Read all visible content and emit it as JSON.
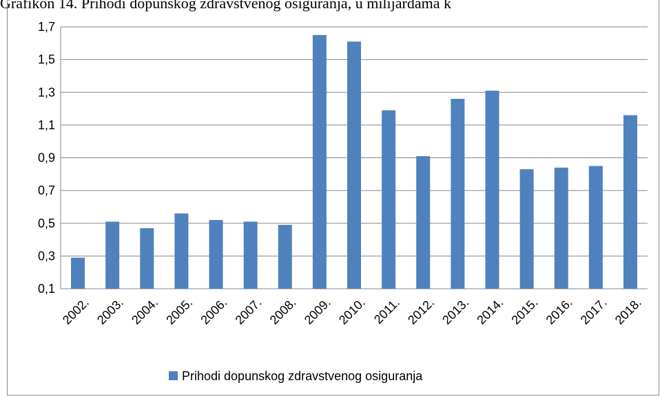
{
  "chart_data": {
    "type": "bar",
    "title": "Grafikon 14. Prihodi dopunskog zdravstvenog osiguranja, u milijardama k",
    "categories": [
      "2002.",
      "2003.",
      "2004.",
      "2005.",
      "2006.",
      "2007.",
      "2008.",
      "2009.",
      "2010.",
      "2011.",
      "2012.",
      "2013.",
      "2014.",
      "2015.",
      "2016.",
      "2017.",
      "2018."
    ],
    "series": [
      {
        "name": "Prihodi dopunskog zdravstvenog osiguranja",
        "color": "#4f81bd",
        "values": [
          0.29,
          0.51,
          0.47,
          0.56,
          0.52,
          0.51,
          0.49,
          1.65,
          1.61,
          1.19,
          0.91,
          1.26,
          1.31,
          0.83,
          0.84,
          0.85,
          1.16
        ]
      }
    ],
    "ylim": [
      0.1,
      1.7
    ],
    "yticks": [
      {
        "value": 0.1,
        "label": "0,1"
      },
      {
        "value": 0.3,
        "label": "0,3"
      },
      {
        "value": 0.5,
        "label": "0,5"
      },
      {
        "value": 0.7,
        "label": "0,7"
      },
      {
        "value": 0.9,
        "label": "0,9"
      },
      {
        "value": 1.1,
        "label": "1,1"
      },
      {
        "value": 1.3,
        "label": "1,3"
      },
      {
        "value": 1.5,
        "label": "1,5"
      },
      {
        "value": 1.7,
        "label": "1,7"
      }
    ],
    "grid": true,
    "legend": "bottom"
  }
}
